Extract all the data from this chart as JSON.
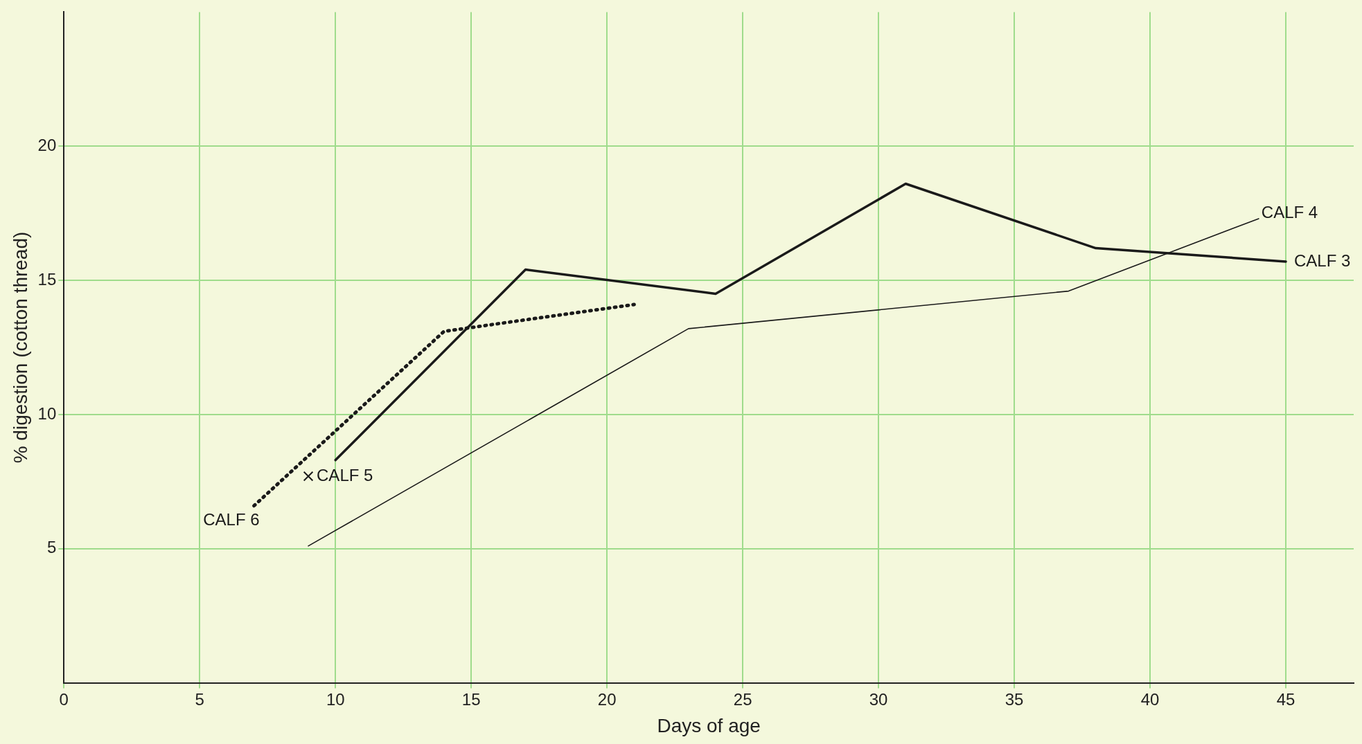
{
  "chart_data": {
    "type": "line",
    "xlabel": "Days of age",
    "ylabel": "% digestion (cotton thread)",
    "xlim": [
      0,
      47.5
    ],
    "xticks": [
      0,
      5,
      10,
      15,
      20,
      25,
      30,
      35,
      40,
      45
    ],
    "ylim": [
      0,
      25
    ],
    "yticks": [
      5,
      10,
      15,
      20
    ],
    "grid": true,
    "legend": false,
    "marker": "none",
    "series": [
      {
        "name": "CALF 3",
        "color": "#1a1a1a",
        "line_style": "solid",
        "x": [
          10,
          17,
          24,
          31,
          38,
          45
        ],
        "values": [
          8.3,
          15.4,
          14.5,
          18.6,
          16.2,
          15.7
        ]
      },
      {
        "name": "CALF 4",
        "color": "#1a1a1a",
        "line_style": "solid",
        "x": [
          9,
          23,
          37,
          44
        ],
        "values": [
          5.1,
          13.2,
          14.6,
          17.3
        ]
      },
      {
        "name": "CALF 6",
        "color": "#1a1a1a",
        "line_style": "dotted",
        "x": [
          7,
          14,
          21
        ],
        "values": [
          6.6,
          13.1,
          14.1
        ]
      },
      {
        "name": "CALF 5",
        "type": "scatter",
        "marker": "cross",
        "color": "#1a1a1a",
        "x": [
          9
        ],
        "values": [
          7.7
        ]
      }
    ]
  }
}
